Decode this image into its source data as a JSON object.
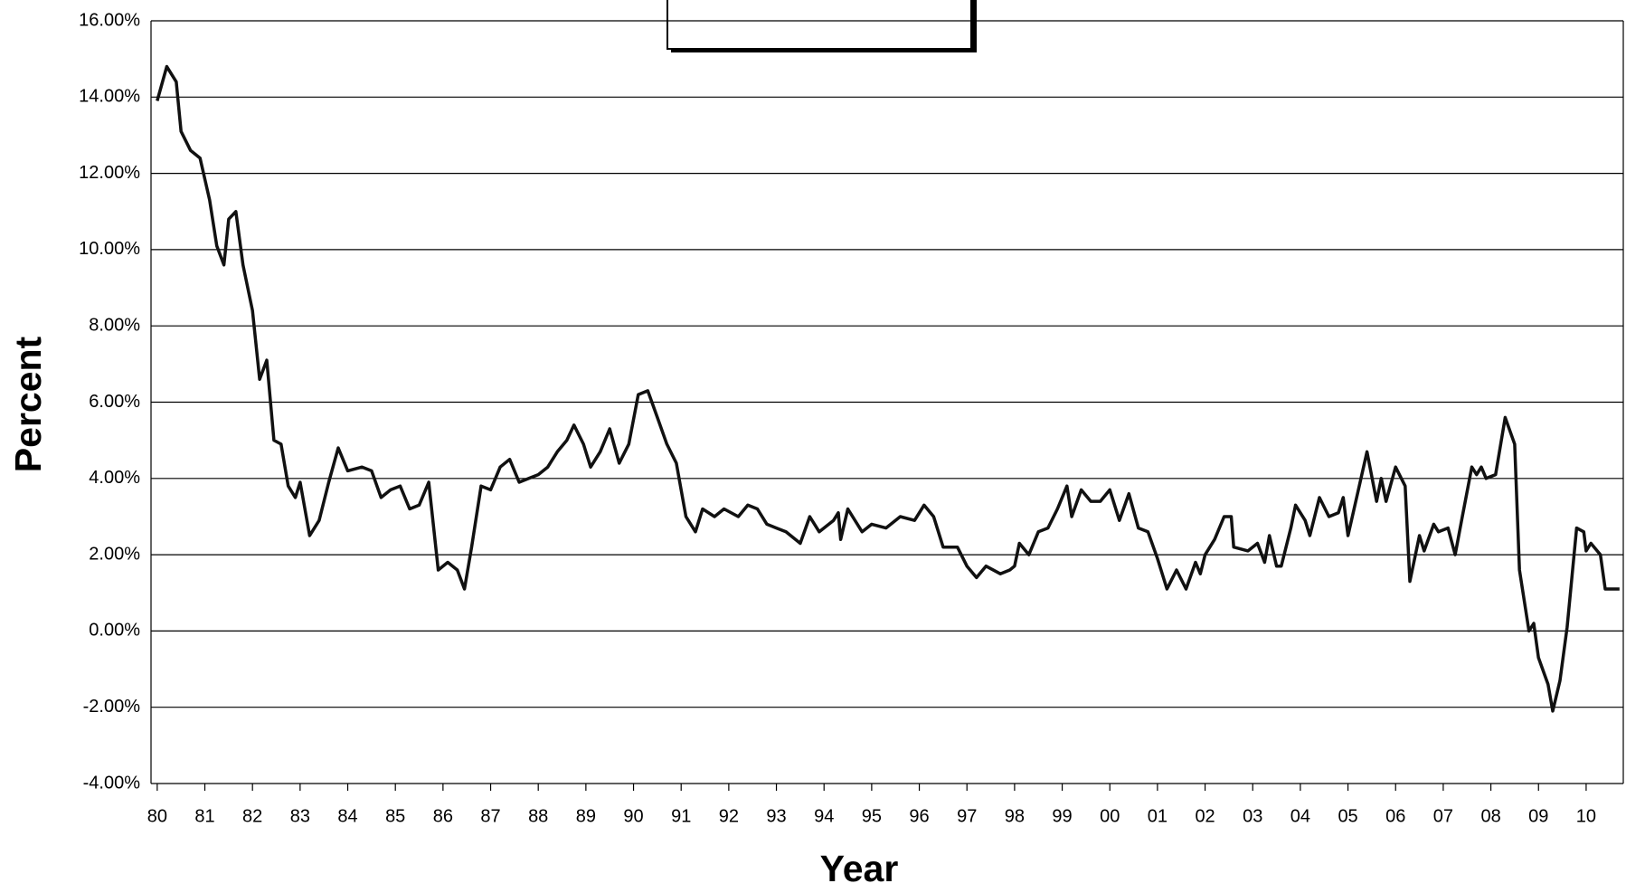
{
  "chart_data": {
    "type": "line",
    "xlabel": "Year",
    "ylabel": "Percent",
    "xlim": [
      1979.87,
      2010.78
    ],
    "xticks": [
      {
        "value": 1980,
        "label": "80"
      },
      {
        "value": 1981,
        "label": "81"
      },
      {
        "value": 1982,
        "label": "82"
      },
      {
        "value": 1983,
        "label": "83"
      },
      {
        "value": 1984,
        "label": "84"
      },
      {
        "value": 1985,
        "label": "85"
      },
      {
        "value": 1986,
        "label": "86"
      },
      {
        "value": 1987,
        "label": "87"
      },
      {
        "value": 1988,
        "label": "88"
      },
      {
        "value": 1989,
        "label": "89"
      },
      {
        "value": 1990,
        "label": "90"
      },
      {
        "value": 1991,
        "label": "91"
      },
      {
        "value": 1992,
        "label": "92"
      },
      {
        "value": 1993,
        "label": "93"
      },
      {
        "value": 1994,
        "label": "94"
      },
      {
        "value": 1995,
        "label": "95"
      },
      {
        "value": 1996,
        "label": "96"
      },
      {
        "value": 1997,
        "label": "97"
      },
      {
        "value": 1998,
        "label": "98"
      },
      {
        "value": 1999,
        "label": "99"
      },
      {
        "value": 2000,
        "label": "00"
      },
      {
        "value": 2001,
        "label": "01"
      },
      {
        "value": 2002,
        "label": "02"
      },
      {
        "value": 2003,
        "label": "03"
      },
      {
        "value": 2004,
        "label": "04"
      },
      {
        "value": 2005,
        "label": "05"
      },
      {
        "value": 2006,
        "label": "06"
      },
      {
        "value": 2007,
        "label": "07"
      },
      {
        "value": 2008,
        "label": "08"
      },
      {
        "value": 2009,
        "label": "09"
      },
      {
        "value": 2010,
        "label": "10"
      }
    ],
    "ylim": [
      -4,
      16
    ],
    "yticks": [
      {
        "value": -4,
        "label": "-4.00%"
      },
      {
        "value": -2,
        "label": "-2.00%"
      },
      {
        "value": 0,
        "label": "0.00%"
      },
      {
        "value": 2,
        "label": "2.00%"
      },
      {
        "value": 4,
        "label": "4.00%"
      },
      {
        "value": 6,
        "label": "6.00%"
      },
      {
        "value": 8,
        "label": "8.00%"
      },
      {
        "value": 10,
        "label": "10.00%"
      },
      {
        "value": 12,
        "label": "12.00%"
      },
      {
        "value": 14,
        "label": "14.00%"
      },
      {
        "value": 16,
        "label": "16.00%"
      }
    ],
    "grid": true,
    "color": "#111111",
    "x": [
      1980.0,
      1980.2,
      1980.4,
      1980.5,
      1980.7,
      1980.9,
      1981.1,
      1981.25,
      1981.4,
      1981.5,
      1981.65,
      1981.8,
      1982.0,
      1982.15,
      1982.3,
      1982.45,
      1982.6,
      1982.75,
      1982.9,
      1983.0,
      1983.2,
      1983.4,
      1983.6,
      1983.8,
      1984.0,
      1984.3,
      1984.5,
      1984.7,
      1984.9,
      1985.1,
      1985.3,
      1985.5,
      1985.7,
      1985.9,
      1986.1,
      1986.3,
      1986.45,
      1986.6,
      1986.8,
      1987.0,
      1987.2,
      1987.4,
      1987.6,
      1987.8,
      1988.0,
      1988.2,
      1988.4,
      1988.6,
      1988.75,
      1988.95,
      1989.1,
      1989.3,
      1989.5,
      1989.7,
      1989.9,
      1990.1,
      1990.3,
      1990.5,
      1990.7,
      1990.9,
      1991.1,
      1991.3,
      1991.45,
      1991.7,
      1991.9,
      1992.2,
      1992.4,
      1992.6,
      1992.8,
      1993.0,
      1993.2,
      1993.5,
      1993.7,
      1993.9,
      1994.2,
      1994.3,
      1994.35,
      1994.5,
      1994.8,
      1995.0,
      1995.3,
      1995.6,
      1995.9,
      1996.1,
      1996.3,
      1996.5,
      1996.8,
      1997.0,
      1997.2,
      1997.4,
      1997.7,
      1997.9,
      1998.0,
      1998.1,
      1998.3,
      1998.5,
      1998.7,
      1998.9,
      1999.1,
      1999.2,
      1999.4,
      1999.6,
      1999.8,
      2000.0,
      2000.2,
      2000.4,
      2000.6,
      2000.8,
      2001.0,
      2001.2,
      2001.4,
      2001.6,
      2001.8,
      2001.9,
      2002.0,
      2002.2,
      2002.4,
      2002.55,
      2002.6,
      2002.9,
      2003.1,
      2003.25,
      2003.35,
      2003.5,
      2003.6,
      2003.8,
      2003.9,
      2004.1,
      2004.2,
      2004.4,
      2004.6,
      2004.8,
      2004.9,
      2005.0,
      2005.2,
      2005.4,
      2005.6,
      2005.7,
      2005.8,
      2006.0,
      2006.2,
      2006.3,
      2006.5,
      2006.6,
      2006.8,
      2006.9,
      2007.1,
      2007.25,
      2007.4,
      2007.6,
      2007.7,
      2007.8,
      2007.9,
      2008.1,
      2008.3,
      2008.5,
      2008.6,
      2008.8,
      2008.9,
      2009.0,
      2009.2,
      2009.3,
      2009.45,
      2009.6,
      2009.8,
      2009.95,
      2010.0,
      2010.1,
      2010.3,
      2010.4,
      2010.6,
      2010.7
    ],
    "values": [
      13.9,
      14.8,
      14.4,
      13.1,
      12.6,
      12.4,
      11.3,
      10.1,
      9.6,
      10.8,
      11.0,
      9.6,
      8.4,
      6.6,
      7.1,
      5.0,
      4.9,
      3.8,
      3.5,
      3.9,
      2.5,
      2.9,
      3.9,
      4.8,
      4.2,
      4.3,
      4.2,
      3.5,
      3.7,
      3.8,
      3.2,
      3.3,
      3.9,
      1.6,
      1.8,
      1.6,
      1.1,
      2.2,
      3.8,
      3.7,
      4.3,
      4.5,
      3.9,
      4.0,
      4.1,
      4.3,
      4.7,
      5.0,
      5.4,
      4.9,
      4.3,
      4.7,
      5.3,
      4.4,
      4.9,
      6.2,
      6.3,
      5.6,
      4.9,
      4.4,
      3.0,
      2.6,
      3.2,
      3.0,
      3.2,
      3.0,
      3.3,
      3.2,
      2.8,
      2.7,
      2.6,
      2.3,
      3.0,
      2.6,
      2.9,
      3.1,
      2.4,
      3.2,
      2.6,
      2.8,
      2.7,
      3.0,
      2.9,
      3.3,
      3.0,
      2.2,
      2.2,
      1.7,
      1.4,
      1.7,
      1.5,
      1.6,
      1.7,
      2.3,
      2.0,
      2.6,
      2.7,
      3.2,
      3.8,
      3.0,
      3.7,
      3.4,
      3.4,
      3.7,
      2.9,
      3.6,
      2.7,
      2.6,
      1.9,
      1.1,
      1.6,
      1.1,
      1.8,
      1.5,
      2.0,
      2.4,
      3.0,
      3.0,
      2.2,
      2.1,
      2.3,
      1.8,
      2.5,
      1.7,
      1.7,
      2.7,
      3.3,
      2.9,
      2.5,
      3.5,
      3.0,
      3.1,
      3.5,
      2.5,
      3.6,
      4.7,
      3.4,
      4.0,
      3.4,
      4.3,
      3.8,
      1.3,
      2.5,
      2.1,
      2.8,
      2.6,
      2.7,
      2.0,
      3.0,
      4.3,
      4.1,
      4.3,
      4.0,
      4.1,
      5.6,
      4.9,
      1.6,
      0.0,
      0.2,
      -0.7,
      -1.4,
      -2.1,
      -1.3,
      0.1,
      2.7,
      2.6,
      2.1,
      2.3,
      2.0,
      1.1,
      1.1,
      1.1
    ]
  }
}
